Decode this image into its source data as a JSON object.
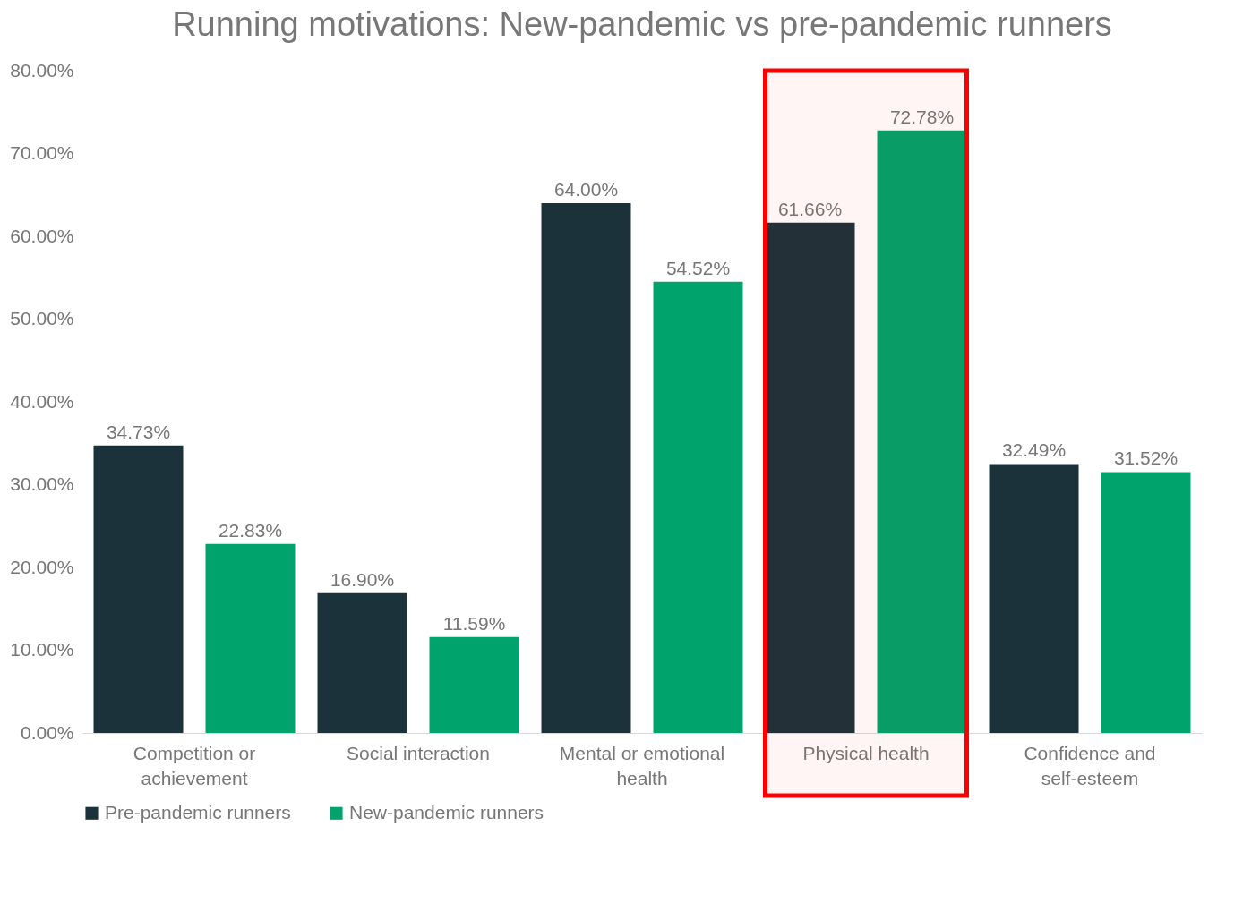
{
  "chart_data": {
    "type": "bar",
    "title": "Running motivations: New-pandemic vs pre-pandemic runners",
    "categories": [
      "Competition or achievement",
      "Social interaction",
      "Mental or emotional health",
      "Physical health",
      "Confidence and self-esteem"
    ],
    "series": [
      {
        "name": "Pre-pandemic runners",
        "color": "#1c323a",
        "values": [
          34.73,
          16.9,
          64.0,
          61.66,
          32.49
        ],
        "value_labels": [
          "34.73%",
          "16.90%",
          "64.00%",
          "61.66%",
          "32.49%"
        ]
      },
      {
        "name": "New-pandemic runners",
        "color": "#00a36c",
        "values": [
          22.83,
          11.59,
          54.52,
          72.78,
          31.52
        ],
        "value_labels": [
          "22.83%",
          "11.59%",
          "54.52%",
          "72.78%",
          "31.52%"
        ]
      }
    ],
    "ylim": [
      0,
      80
    ],
    "yticks": [
      {
        "value": 0,
        "label": "0.00%"
      },
      {
        "value": 10,
        "label": "10.00%"
      },
      {
        "value": 20,
        "label": "20.00%"
      },
      {
        "value": 30,
        "label": "30.00%"
      },
      {
        "value": 40,
        "label": "40.00%"
      },
      {
        "value": 50,
        "label": "50.00%"
      },
      {
        "value": 60,
        "label": "60.00%"
      },
      {
        "value": 70,
        "label": "70.00%"
      },
      {
        "value": 80,
        "label": "80.00%"
      }
    ],
    "bands": [
      {
        "axis": "x",
        "from": "Physical health",
        "to": "Physical health",
        "color": "#ff0000"
      }
    ],
    "grid": false,
    "legend": "bottom"
  }
}
